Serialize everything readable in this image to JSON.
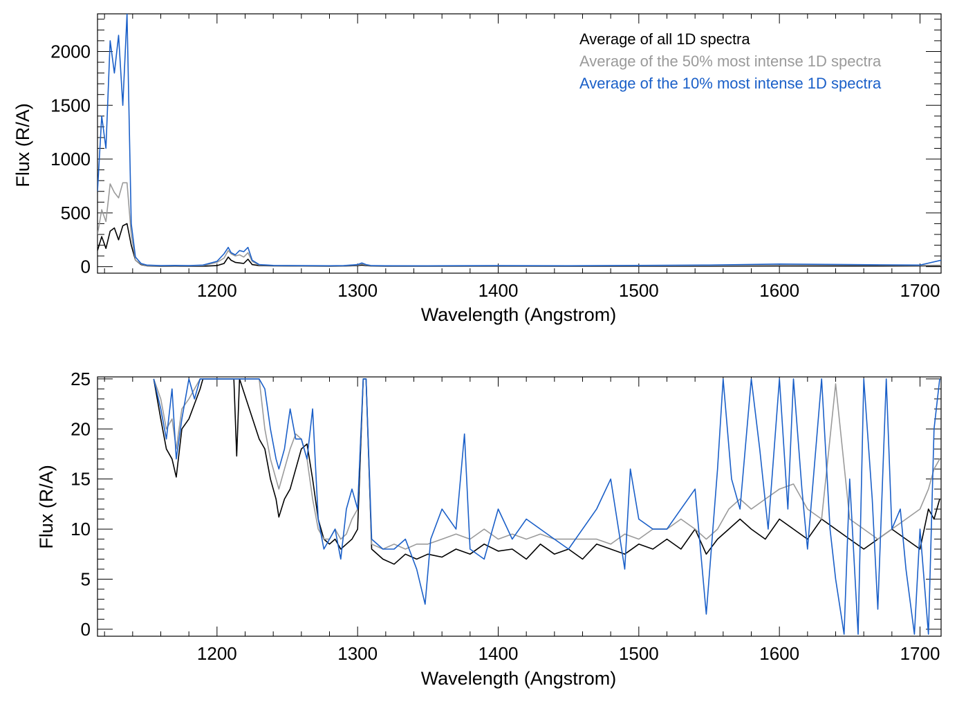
{
  "legend": [
    {
      "label": "Average of all 1D spectra",
      "color": "#000000"
    },
    {
      "label": "Average of the 50% most intense 1D spectra",
      "color": "#9a9a9a"
    },
    {
      "label": "Average of the 10% most intense 1D spectra",
      "color": "#1a5fc8"
    }
  ],
  "chart_data": [
    {
      "type": "line",
      "xlabel": "Wavelength (Angstrom)",
      "ylabel": "Flux (R/A)",
      "xlim": [
        1115,
        1715
      ],
      "ylim": [
        -60,
        2350
      ],
      "xticks": [
        1200,
        1300,
        1400,
        1500,
        1600,
        1700
      ],
      "yticks": [
        0,
        500,
        1000,
        1500,
        2000
      ],
      "legend_position": "top-right",
      "series": [
        {
          "name": "Average of all 1D spectra",
          "color": "#000000",
          "x": [
            1115,
            1118,
            1121,
            1124,
            1127,
            1130,
            1133,
            1136,
            1139,
            1142,
            1146,
            1150,
            1160,
            1170,
            1180,
            1190,
            1200,
            1205,
            1208,
            1210,
            1213,
            1216,
            1219,
            1222,
            1225,
            1230,
            1240,
            1260,
            1280,
            1290,
            1300,
            1303,
            1306,
            1310,
            1320,
            1350,
            1400,
            1450,
            1500,
            1550,
            1600,
            1650,
            1700,
            1715
          ],
          "y": [
            150,
            280,
            170,
            330,
            360,
            250,
            380,
            400,
            200,
            60,
            20,
            8,
            5,
            6,
            4,
            5,
            10,
            30,
            90,
            60,
            40,
            35,
            30,
            70,
            20,
            10,
            8,
            6,
            5,
            6,
            10,
            15,
            10,
            6,
            5,
            5,
            4,
            5,
            5,
            5,
            6,
            6,
            7,
            10
          ]
        },
        {
          "name": "Average of the 50% most intense 1D spectra",
          "color": "#9a9a9a",
          "x": [
            1115,
            1118,
            1121,
            1124,
            1127,
            1130,
            1133,
            1136,
            1139,
            1142,
            1146,
            1150,
            1160,
            1170,
            1180,
            1190,
            1200,
            1205,
            1208,
            1210,
            1213,
            1216,
            1219,
            1222,
            1225,
            1230,
            1240,
            1260,
            1280,
            1290,
            1300,
            1303,
            1306,
            1310,
            1320,
            1350,
            1400,
            1450,
            1500,
            1550,
            1600,
            1650,
            1700,
            1715
          ],
          "y": [
            300,
            530,
            420,
            770,
            690,
            640,
            780,
            780,
            300,
            60,
            25,
            10,
            8,
            10,
            8,
            10,
            40,
            80,
            150,
            120,
            100,
            110,
            90,
            130,
            50,
            15,
            10,
            8,
            7,
            8,
            15,
            25,
            15,
            8,
            7,
            7,
            7,
            8,
            9,
            10,
            13,
            15,
            12,
            14
          ]
        },
        {
          "name": "Average of the 10% most intense 1D spectra",
          "color": "#1a5fc8",
          "x": [
            1115,
            1118,
            1121,
            1124,
            1127,
            1130,
            1133,
            1136,
            1139,
            1142,
            1146,
            1150,
            1160,
            1170,
            1180,
            1190,
            1200,
            1205,
            1208,
            1210,
            1213,
            1216,
            1219,
            1222,
            1225,
            1230,
            1240,
            1260,
            1280,
            1290,
            1300,
            1303,
            1306,
            1310,
            1320,
            1350,
            1400,
            1450,
            1500,
            1550,
            1600,
            1650,
            1700,
            1715
          ],
          "y": [
            700,
            1400,
            1100,
            2100,
            1800,
            2150,
            1500,
            2350,
            400,
            90,
            30,
            15,
            10,
            12,
            10,
            15,
            50,
            120,
            180,
            130,
            110,
            150,
            140,
            180,
            60,
            20,
            12,
            10,
            9,
            10,
            20,
            35,
            20,
            10,
            9,
            8,
            10,
            9,
            12,
            15,
            25,
            20,
            15,
            60
          ]
        }
      ]
    },
    {
      "type": "line",
      "xlabel": "Wavelength (Angstrom)",
      "ylabel": "Flux (R/A)",
      "xlim": [
        1115,
        1715
      ],
      "ylim": [
        -0.7,
        25.2
      ],
      "xticks": [
        1200,
        1300,
        1400,
        1500,
        1600,
        1700
      ],
      "yticks": [
        0,
        5,
        10,
        15,
        20,
        25
      ],
      "series": [
        {
          "name": "Average of all 1D spectra",
          "color": "#000000",
          "x": [
            1155,
            1160,
            1164,
            1168,
            1171,
            1175,
            1180,
            1184,
            1188,
            1190,
            1212,
            1214,
            1216,
            1230,
            1234,
            1238,
            1242,
            1244,
            1248,
            1252,
            1256,
            1260,
            1264,
            1268,
            1272,
            1276,
            1280,
            1284,
            1288,
            1292,
            1296,
            1300,
            1304,
            1306,
            1310,
            1318,
            1326,
            1334,
            1342,
            1350,
            1360,
            1370,
            1380,
            1390,
            1400,
            1410,
            1420,
            1430,
            1440,
            1450,
            1460,
            1470,
            1480,
            1490,
            1500,
            1510,
            1520,
            1530,
            1540,
            1548,
            1556,
            1564,
            1572,
            1580,
            1590,
            1600,
            1610,
            1620,
            1630,
            1640,
            1650,
            1660,
            1670,
            1680,
            1690,
            1700,
            1706,
            1710,
            1714
          ],
          "y": [
            25,
            21,
            18,
            17,
            15.2,
            20,
            21,
            22.5,
            24,
            25,
            25,
            17.3,
            25,
            19,
            18,
            15,
            13,
            11.2,
            13,
            14,
            16,
            18,
            18.5,
            15,
            11,
            9,
            8.5,
            9,
            8,
            8.5,
            9,
            10,
            25,
            25,
            8,
            7,
            6.5,
            7.5,
            7,
            7.5,
            7.2,
            8,
            7.5,
            8.5,
            7.8,
            8,
            7,
            8.5,
            7.5,
            8,
            7,
            8.5,
            8,
            7.5,
            8.5,
            8,
            9,
            8,
            10,
            7.5,
            9,
            10,
            11,
            10,
            9,
            11,
            10,
            9,
            11,
            10,
            9,
            8,
            9,
            10,
            9,
            8,
            12,
            11,
            13
          ]
        },
        {
          "name": "Average of the 50% most intense 1D spectra",
          "color": "#9a9a9a",
          "x": [
            1155,
            1160,
            1164,
            1168,
            1171,
            1175,
            1180,
            1184,
            1188,
            1190,
            1230,
            1234,
            1238,
            1242,
            1244,
            1248,
            1252,
            1256,
            1260,
            1264,
            1268,
            1272,
            1276,
            1280,
            1284,
            1288,
            1292,
            1296,
            1300,
            1304,
            1306,
            1310,
            1318,
            1326,
            1334,
            1342,
            1350,
            1360,
            1370,
            1380,
            1390,
            1400,
            1410,
            1420,
            1430,
            1440,
            1450,
            1460,
            1470,
            1480,
            1490,
            1500,
            1510,
            1520,
            1530,
            1540,
            1548,
            1556,
            1564,
            1572,
            1580,
            1590,
            1600,
            1610,
            1620,
            1630,
            1640,
            1650,
            1660,
            1670,
            1680,
            1690,
            1700,
            1706,
            1710,
            1714
          ],
          "y": [
            25,
            23,
            20,
            21,
            18,
            22,
            23,
            24,
            25,
            25,
            25,
            20,
            17,
            15,
            14,
            16,
            18,
            19.5,
            19,
            17,
            13,
            10,
            9,
            9,
            10,
            9,
            9.5,
            11,
            12,
            25,
            25,
            8.5,
            8,
            8.5,
            8,
            8.5,
            8.5,
            9,
            9.5,
            9,
            10,
            9,
            9.5,
            9,
            9.5,
            9,
            9,
            9,
            9,
            8.5,
            9.5,
            9,
            10,
            10,
            11,
            10,
            9,
            10,
            12,
            13,
            12,
            13,
            14,
            14.5,
            12,
            11,
            24.5,
            11,
            10,
            9,
            10,
            11,
            12,
            14,
            16,
            17
          ]
        },
        {
          "name": "Average of the 10% most intense 1D spectra",
          "color": "#1a5fc8",
          "x": [
            1155,
            1160,
            1164,
            1168,
            1171,
            1175,
            1180,
            1184,
            1188,
            1190,
            1230,
            1234,
            1238,
            1242,
            1244,
            1248,
            1252,
            1256,
            1260,
            1264,
            1268,
            1272,
            1276,
            1280,
            1284,
            1288,
            1292,
            1296,
            1300,
            1304,
            1306,
            1310,
            1318,
            1326,
            1334,
            1342,
            1348,
            1352,
            1360,
            1370,
            1376,
            1380,
            1390,
            1400,
            1410,
            1420,
            1430,
            1440,
            1450,
            1460,
            1470,
            1480,
            1490,
            1494,
            1500,
            1510,
            1520,
            1530,
            1540,
            1548,
            1556,
            1560,
            1566,
            1572,
            1580,
            1586,
            1592,
            1600,
            1606,
            1610,
            1616,
            1620,
            1630,
            1636,
            1640,
            1646,
            1650,
            1656,
            1660,
            1666,
            1670,
            1676,
            1680,
            1686,
            1690,
            1696,
            1700,
            1706,
            1710,
            1714
          ],
          "y": [
            25,
            22,
            19,
            24,
            17,
            21,
            25,
            23,
            25,
            25,
            25,
            24,
            20,
            17,
            16,
            18,
            22,
            19,
            19,
            17,
            22,
            11,
            8,
            9,
            10,
            7,
            12,
            14,
            12,
            25,
            25,
            9,
            8,
            8,
            9,
            6,
            2.5,
            9,
            12,
            10,
            19.5,
            8,
            7,
            12,
            9,
            11,
            10,
            9,
            8,
            10,
            12,
            15,
            6,
            16,
            11,
            10,
            10,
            12,
            14,
            1.5,
            16,
            25,
            15,
            12,
            25,
            18,
            10,
            25,
            12,
            25,
            14,
            8,
            25,
            10,
            5,
            -0.5,
            15,
            -0.5,
            25,
            13,
            2,
            25,
            10,
            12,
            6,
            -0.5,
            10,
            -0.5,
            20,
            25
          ]
        }
      ]
    }
  ]
}
